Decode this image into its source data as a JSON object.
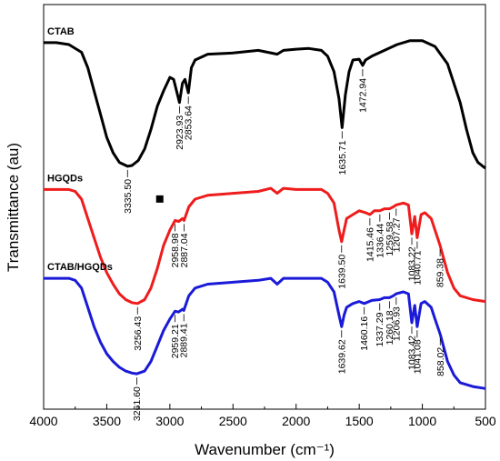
{
  "chart_data": {
    "type": "line",
    "xlabel": "Wavenumber (cm⁻¹)",
    "ylabel": "Transmittance (au)",
    "xlim": [
      4000,
      500
    ],
    "x_ticks": [
      4000,
      3500,
      3000,
      2500,
      2000,
      1500,
      1000,
      500
    ],
    "x_tick_labels": [
      "4000",
      "3500",
      "3000",
      "2500",
      "2000",
      "1500",
      "1000",
      "500"
    ],
    "y_ticks_shown": false,
    "colors": {
      "CTAB": "#000000",
      "HGQDs": "#ee1c1c",
      "CTAB/HGQDs": "#1a1ad8"
    },
    "series": [
      {
        "name": "CTAB",
        "color": "#000000",
        "points": [
          [
            4000,
            0.925
          ],
          [
            3900,
            0.925
          ],
          [
            3800,
            0.92
          ],
          [
            3700,
            0.9
          ],
          [
            3650,
            0.86
          ],
          [
            3600,
            0.8
          ],
          [
            3550,
            0.74
          ],
          [
            3500,
            0.68
          ],
          [
            3450,
            0.64
          ],
          [
            3400,
            0.615
          ],
          [
            3335.5,
            0.605
          ],
          [
            3300,
            0.607
          ],
          [
            3250,
            0.62
          ],
          [
            3200,
            0.65
          ],
          [
            3150,
            0.7
          ],
          [
            3100,
            0.76
          ],
          [
            3050,
            0.8
          ],
          [
            3000,
            0.835
          ],
          [
            2970,
            0.83
          ],
          [
            2923.93,
            0.77
          ],
          [
            2900,
            0.82
          ],
          [
            2880,
            0.83
          ],
          [
            2853.64,
            0.795
          ],
          [
            2830,
            0.86
          ],
          [
            2800,
            0.88
          ],
          [
            2700,
            0.895
          ],
          [
            2500,
            0.898
          ],
          [
            2300,
            0.905
          ],
          [
            2150,
            0.895
          ],
          [
            2100,
            0.905
          ],
          [
            2000,
            0.908
          ],
          [
            1900,
            0.91
          ],
          [
            1800,
            0.905
          ],
          [
            1750,
            0.89
          ],
          [
            1700,
            0.85
          ],
          [
            1660,
            0.78
          ],
          [
            1635.71,
            0.705
          ],
          [
            1610,
            0.79
          ],
          [
            1580,
            0.85
          ],
          [
            1550,
            0.88
          ],
          [
            1500,
            0.882
          ],
          [
            1472.94,
            0.866
          ],
          [
            1450,
            0.88
          ],
          [
            1400,
            0.89
          ],
          [
            1300,
            0.905
          ],
          [
            1200,
            0.92
          ],
          [
            1100,
            0.93
          ],
          [
            1000,
            0.93
          ],
          [
            900,
            0.915
          ],
          [
            800,
            0.87
          ],
          [
            700,
            0.77
          ],
          [
            650,
            0.7
          ],
          [
            600,
            0.64
          ],
          [
            560,
            0.615
          ],
          [
            520,
            0.605
          ],
          [
            500,
            0.6
          ]
        ],
        "peak_labels": [
          "3335.50",
          "2923.93",
          "2853.64",
          "1635.71",
          "1472.94"
        ]
      },
      {
        "name": "HGQDs",
        "color": "#ee1c1c",
        "points": [
          [
            4000,
            0.545
          ],
          [
            3900,
            0.545
          ],
          [
            3800,
            0.545
          ],
          [
            3750,
            0.54
          ],
          [
            3700,
            0.52
          ],
          [
            3650,
            0.47
          ],
          [
            3600,
            0.42
          ],
          [
            3550,
            0.37
          ],
          [
            3500,
            0.33
          ],
          [
            3450,
            0.3
          ],
          [
            3400,
            0.275
          ],
          [
            3350,
            0.26
          ],
          [
            3300,
            0.252
          ],
          [
            3256.43,
            0.25
          ],
          [
            3200,
            0.26
          ],
          [
            3150,
            0.29
          ],
          [
            3100,
            0.34
          ],
          [
            3050,
            0.4
          ],
          [
            3000,
            0.44
          ],
          [
            2958.98,
            0.465
          ],
          [
            2930,
            0.462
          ],
          [
            2900,
            0.47
          ],
          [
            2887.04,
            0.465
          ],
          [
            2850,
            0.5
          ],
          [
            2800,
            0.52
          ],
          [
            2700,
            0.53
          ],
          [
            2500,
            0.535
          ],
          [
            2300,
            0.54
          ],
          [
            2200,
            0.548
          ],
          [
            2150,
            0.535
          ],
          [
            2100,
            0.548
          ],
          [
            2000,
            0.545
          ],
          [
            1900,
            0.545
          ],
          [
            1800,
            0.545
          ],
          [
            1750,
            0.535
          ],
          [
            1700,
            0.51
          ],
          [
            1660,
            0.44
          ],
          [
            1639.5,
            0.41
          ],
          [
            1620,
            0.44
          ],
          [
            1600,
            0.47
          ],
          [
            1550,
            0.48
          ],
          [
            1500,
            0.49
          ],
          [
            1450,
            0.485
          ],
          [
            1415.46,
            0.48
          ],
          [
            1380,
            0.49
          ],
          [
            1336.44,
            0.49
          ],
          [
            1300,
            0.495
          ],
          [
            1259.58,
            0.495
          ],
          [
            1230,
            0.5
          ],
          [
            1207.27,
            0.505
          ],
          [
            1150,
            0.51
          ],
          [
            1110,
            0.505
          ],
          [
            1083.22,
            0.43
          ],
          [
            1060,
            0.475
          ],
          [
            1040.71,
            0.42
          ],
          [
            1010,
            0.48
          ],
          [
            980,
            0.485
          ],
          [
            930,
            0.47
          ],
          [
            900,
            0.44
          ],
          [
            859.38,
            0.4
          ],
          [
            800,
            0.33
          ],
          [
            750,
            0.29
          ],
          [
            700,
            0.27
          ],
          [
            600,
            0.26
          ],
          [
            500,
            0.255
          ]
        ],
        "peak_labels": [
          "3256.43",
          "2958.98",
          "2887.04",
          "1639.50",
          "1415.46",
          "1336.44",
          "1259.58",
          "1207.27",
          "1083.22",
          "1040.71",
          "859.38"
        ]
      },
      {
        "name": "CTAB/HGQDs",
        "color": "#1a1ad8",
        "points": [
          [
            4000,
            0.315
          ],
          [
            3900,
            0.315
          ],
          [
            3800,
            0.315
          ],
          [
            3750,
            0.31
          ],
          [
            3700,
            0.29
          ],
          [
            3650,
            0.24
          ],
          [
            3600,
            0.19
          ],
          [
            3550,
            0.15
          ],
          [
            3500,
            0.12
          ],
          [
            3450,
            0.1
          ],
          [
            3400,
            0.085
          ],
          [
            3350,
            0.075
          ],
          [
            3300,
            0.07
          ],
          [
            3261.6,
            0.068
          ],
          [
            3200,
            0.075
          ],
          [
            3150,
            0.1
          ],
          [
            3100,
            0.14
          ],
          [
            3050,
            0.18
          ],
          [
            3000,
            0.21
          ],
          [
            2959.21,
            0.23
          ],
          [
            2930,
            0.228
          ],
          [
            2900,
            0.235
          ],
          [
            2889.41,
            0.232
          ],
          [
            2850,
            0.27
          ],
          [
            2800,
            0.29
          ],
          [
            2700,
            0.3
          ],
          [
            2500,
            0.305
          ],
          [
            2300,
            0.31
          ],
          [
            2200,
            0.315
          ],
          [
            2150,
            0.3
          ],
          [
            2100,
            0.315
          ],
          [
            2000,
            0.315
          ],
          [
            1900,
            0.315
          ],
          [
            1800,
            0.315
          ],
          [
            1750,
            0.305
          ],
          [
            1700,
            0.28
          ],
          [
            1660,
            0.22
          ],
          [
            1639.62,
            0.19
          ],
          [
            1620,
            0.22
          ],
          [
            1600,
            0.24
          ],
          [
            1550,
            0.25
          ],
          [
            1500,
            0.255
          ],
          [
            1460.16,
            0.25
          ],
          [
            1400,
            0.258
          ],
          [
            1337.29,
            0.26
          ],
          [
            1300,
            0.265
          ],
          [
            1260.18,
            0.265
          ],
          [
            1230,
            0.27
          ],
          [
            1206.93,
            0.275
          ],
          [
            1150,
            0.28
          ],
          [
            1110,
            0.275
          ],
          [
            1083.42,
            0.2
          ],
          [
            1060,
            0.245
          ],
          [
            1041.08,
            0.19
          ],
          [
            1010,
            0.25
          ],
          [
            980,
            0.255
          ],
          [
            930,
            0.24
          ],
          [
            900,
            0.21
          ],
          [
            858.02,
            0.17
          ],
          [
            800,
            0.1
          ],
          [
            750,
            0.065
          ],
          [
            700,
            0.045
          ],
          [
            600,
            0.035
          ],
          [
            500,
            0.03
          ]
        ],
        "peak_labels": [
          "3261.60",
          "2959.21",
          "2889.41",
          "1639.62",
          "1460.16",
          "1337.29",
          "1260.18",
          "1206.93",
          "1083.42",
          "1041.08",
          "858.02"
        ]
      }
    ],
    "annotations": [
      {
        "text": "CTAB",
        "series": "CTAB"
      },
      {
        "text": "HGQDs",
        "series": "HGQDs"
      },
      {
        "text": "CTAB/HGQDs",
        "series": "CTAB/HGQDs"
      },
      {
        "text": "■",
        "marker": "filled-square",
        "x": 3080
      }
    ]
  }
}
